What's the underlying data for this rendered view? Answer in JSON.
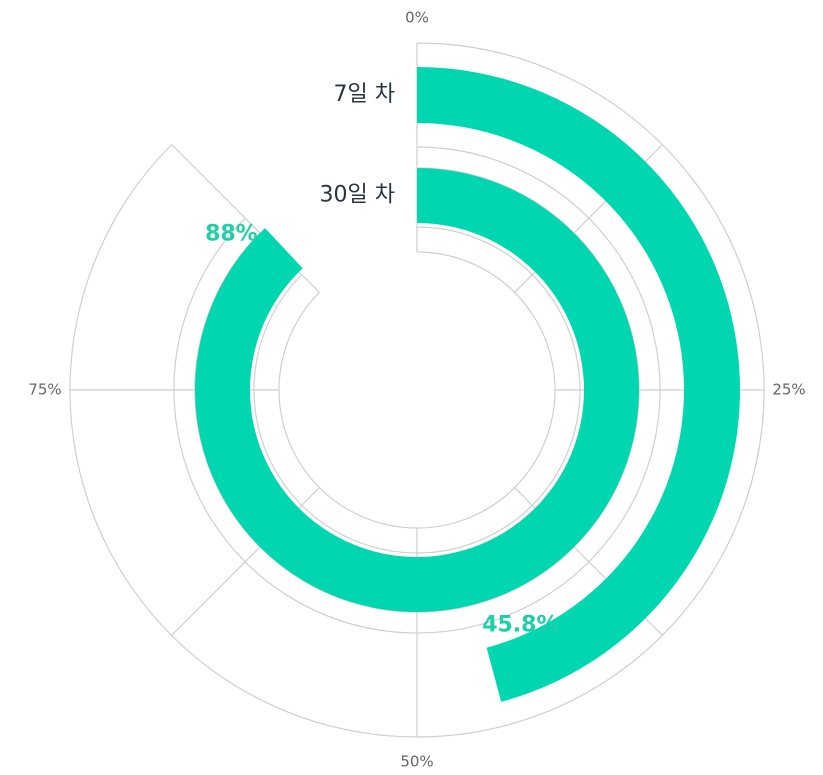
{
  "chart_data": {
    "type": "radialBar",
    "categories": [
      "7일 차",
      "30일 차"
    ],
    "values": [
      45.8,
      88
    ],
    "value_labels": [
      "45.8%",
      "88%"
    ],
    "color": "#00d7b0",
    "xlim": [
      0,
      100
    ],
    "xticks": [
      {
        "value": 0,
        "label": "0%"
      },
      {
        "value": 25,
        "label": "25%"
      },
      {
        "value": 50,
        "label": "50%"
      },
      {
        "value": 75,
        "label": "75%"
      }
    ]
  }
}
